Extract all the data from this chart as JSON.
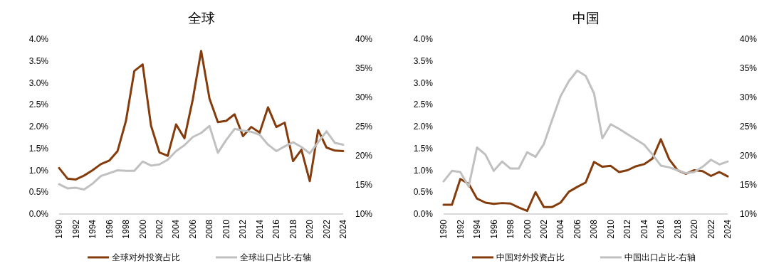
{
  "chart_data": [
    {
      "type": "line",
      "title": "全球",
      "x": [
        1990,
        1991,
        1992,
        1993,
        1994,
        1995,
        1996,
        1997,
        1998,
        1999,
        2000,
        2001,
        2002,
        2003,
        2004,
        2005,
        2006,
        2007,
        2008,
        2009,
        2010,
        2011,
        2012,
        2013,
        2014,
        2015,
        2016,
        2017,
        2018,
        2019,
        2020,
        2021,
        2022,
        2023,
        2024
      ],
      "xlim": [
        1990,
        2024
      ],
      "xticks": [
        1990,
        1992,
        1994,
        1996,
        1998,
        2000,
        2002,
        2004,
        2006,
        2008,
        2010,
        2012,
        2014,
        2016,
        2018,
        2020,
        2022,
        2024
      ],
      "ylim": [
        0,
        4
      ],
      "yticks": [
        {
          "value": 0,
          "label": "0.0%"
        },
        {
          "value": 0.5,
          "label": "0.5%"
        },
        {
          "value": 1,
          "label": "1.0%"
        },
        {
          "value": 1.5,
          "label": "1.5%"
        },
        {
          "value": 2,
          "label": "2.0%"
        },
        {
          "value": 2.5,
          "label": "2.5%"
        },
        {
          "value": 3,
          "label": "3.0%"
        },
        {
          "value": 3.5,
          "label": "3.5%"
        },
        {
          "value": 4,
          "label": "4.0%"
        }
      ],
      "y2lim": [
        10,
        40
      ],
      "y2ticks": [
        {
          "value": 10,
          "label": "10%"
        },
        {
          "value": 15,
          "label": "15%"
        },
        {
          "value": 20,
          "label": "20%"
        },
        {
          "value": 25,
          "label": "25%"
        },
        {
          "value": 30,
          "label": "30%"
        },
        {
          "value": 35,
          "label": "35%"
        },
        {
          "value": 40,
          "label": "40%"
        }
      ],
      "legend": "bottom",
      "grid": false,
      "series": [
        {
          "name": "全球对外投资占比",
          "color": "#843c0c",
          "values": [
            1.05,
            0.81,
            0.79,
            0.88,
            1.0,
            1.14,
            1.22,
            1.44,
            2.13,
            3.27,
            3.42,
            2.02,
            1.41,
            1.33,
            2.05,
            1.73,
            2.62,
            3.73,
            2.64,
            2.1,
            2.13,
            2.28,
            1.78,
            1.99,
            1.86,
            2.44,
            1.99,
            2.09,
            1.21,
            1.47,
            0.75,
            1.92,
            1.52,
            1.45,
            1.44
          ]
        },
        {
          "name": "全球出口占比-右轴",
          "color": "#c0c0c0",
          "axis": "y2",
          "values": [
            15.1,
            14.4,
            14.5,
            14.2,
            15.2,
            16.5,
            17.0,
            17.5,
            17.4,
            17.4,
            19.0,
            18.3,
            18.5,
            19.3,
            20.8,
            21.8,
            23.2,
            23.9,
            25.1,
            20.5,
            22.7,
            24.6,
            24.3,
            24.1,
            23.6,
            21.9,
            20.8,
            21.6,
            22.3,
            21.5,
            20.4,
            22.3,
            24.2,
            22.2,
            21.9
          ]
        }
      ]
    },
    {
      "type": "line",
      "title": "中国",
      "x": [
        1990,
        1991,
        1992,
        1993,
        1994,
        1995,
        1996,
        1997,
        1998,
        1999,
        2000,
        2001,
        2002,
        2003,
        2004,
        2005,
        2006,
        2007,
        2008,
        2009,
        2010,
        2011,
        2012,
        2013,
        2014,
        2015,
        2016,
        2017,
        2018,
        2019,
        2020,
        2021,
        2022,
        2023,
        2024
      ],
      "xlim": [
        1990,
        2024
      ],
      "xticks": [
        1990,
        1992,
        1994,
        1996,
        1998,
        2000,
        2002,
        2004,
        2006,
        2008,
        2010,
        2012,
        2014,
        2016,
        2018,
        2020,
        2022,
        2024
      ],
      "ylim": [
        0,
        4
      ],
      "yticks": [
        {
          "value": 0,
          "label": "0.0%"
        },
        {
          "value": 0.5,
          "label": "0.5%"
        },
        {
          "value": 1,
          "label": "1.0%"
        },
        {
          "value": 1.5,
          "label": "1.5%"
        },
        {
          "value": 2,
          "label": "2.0%"
        },
        {
          "value": 2.5,
          "label": "2.5%"
        },
        {
          "value": 3,
          "label": "3.0%"
        },
        {
          "value": 3.5,
          "label": "3.5%"
        },
        {
          "value": 4,
          "label": "4.0%"
        }
      ],
      "y2lim": [
        10,
        40
      ],
      "y2ticks": [
        {
          "value": 10,
          "label": "10%"
        },
        {
          "value": 15,
          "label": "15%"
        },
        {
          "value": 20,
          "label": "20%"
        },
        {
          "value": 25,
          "label": "25%"
        },
        {
          "value": 30,
          "label": "30%"
        },
        {
          "value": 35,
          "label": "35%"
        },
        {
          "value": 40,
          "label": "40%"
        }
      ],
      "legend": "bottom",
      "grid": false,
      "series": [
        {
          "name": "中国对外投资占比",
          "color": "#843c0c",
          "values": [
            0.21,
            0.21,
            0.8,
            0.69,
            0.35,
            0.26,
            0.23,
            0.25,
            0.24,
            0.15,
            0.07,
            0.5,
            0.16,
            0.16,
            0.26,
            0.51,
            0.62,
            0.72,
            1.19,
            1.08,
            1.1,
            0.96,
            1.0,
            1.09,
            1.14,
            1.27,
            1.71,
            1.25,
            1.0,
            0.92,
            1.0,
            0.98,
            0.87,
            0.96,
            0.86
          ]
        },
        {
          "name": "中国出口占比-右轴",
          "color": "#c0c0c0",
          "axis": "y2",
          "values": [
            15.6,
            17.4,
            17.2,
            14.7,
            21.4,
            20.2,
            17.4,
            19.0,
            17.8,
            17.8,
            20.6,
            19.8,
            22.0,
            26.2,
            30.2,
            32.8,
            34.6,
            33.7,
            30.7,
            23.0,
            25.4,
            24.6,
            23.7,
            22.8,
            21.9,
            20.2,
            18.3,
            18.0,
            17.5,
            17.0,
            17.2,
            18.1,
            19.3,
            18.5,
            19.0
          ]
        }
      ]
    }
  ]
}
